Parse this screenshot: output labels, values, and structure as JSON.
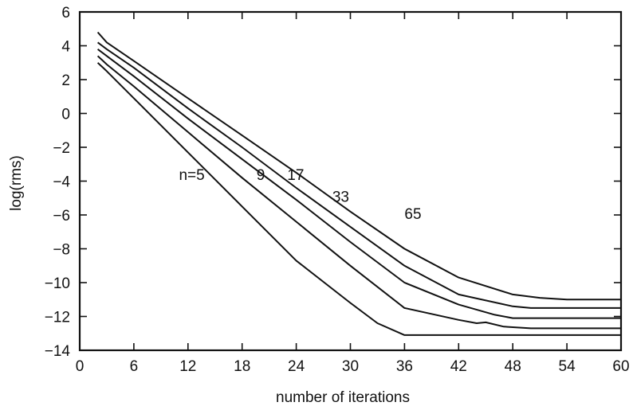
{
  "chart_data": {
    "type": "line",
    "title": "",
    "xlabel": "number of iterations",
    "ylabel": "log(rms)",
    "xlim": [
      0,
      60
    ],
    "ylim": [
      -14,
      6
    ],
    "xticks": [
      0,
      6,
      12,
      18,
      24,
      30,
      36,
      42,
      48,
      54,
      60
    ],
    "yticks": [
      -14,
      -12,
      -10,
      -8,
      -6,
      -4,
      -2,
      0,
      2,
      4,
      6
    ],
    "grid": false,
    "legend": "none",
    "colors": {
      "line": "#111111",
      "axis": "#111111"
    },
    "series": [
      {
        "name": "n=5",
        "label_at": [
          11,
          -3.6
        ],
        "points": [
          [
            2,
            3.0
          ],
          [
            3,
            2.5
          ],
          [
            6,
            0.9
          ],
          [
            12,
            -2.3
          ],
          [
            18,
            -5.5
          ],
          [
            24,
            -8.7
          ],
          [
            30,
            -11.2
          ],
          [
            33,
            -12.4
          ],
          [
            36,
            -13.1
          ],
          [
            42,
            -13.1
          ],
          [
            48,
            -13.1
          ],
          [
            54,
            -13.1
          ],
          [
            60,
            -13.1
          ]
        ]
      },
      {
        "name": "9",
        "label_at": [
          19.6,
          -3.6
        ],
        "points": [
          [
            2,
            3.4
          ],
          [
            3,
            2.9
          ],
          [
            6,
            1.6
          ],
          [
            12,
            -1.1
          ],
          [
            18,
            -3.8
          ],
          [
            24,
            -6.4
          ],
          [
            30,
            -9.0
          ],
          [
            36,
            -11.5
          ],
          [
            42,
            -12.2
          ],
          [
            44,
            -12.4
          ],
          [
            45,
            -12.35
          ],
          [
            47,
            -12.6
          ],
          [
            50,
            -12.7
          ],
          [
            54,
            -12.7
          ],
          [
            60,
            -12.7
          ]
        ]
      },
      {
        "name": "17",
        "label_at": [
          23,
          -3.6
        ],
        "points": [
          [
            2,
            3.8
          ],
          [
            3,
            3.4
          ],
          [
            6,
            2.2
          ],
          [
            12,
            -0.3
          ],
          [
            18,
            -2.7
          ],
          [
            24,
            -5.1
          ],
          [
            30,
            -7.6
          ],
          [
            36,
            -10.0
          ],
          [
            42,
            -11.3
          ],
          [
            46,
            -11.9
          ],
          [
            48,
            -12.1
          ],
          [
            50,
            -12.1
          ],
          [
            54,
            -12.1
          ],
          [
            60,
            -12.1
          ]
        ]
      },
      {
        "name": "33",
        "label_at": [
          28,
          -4.9
        ],
        "points": [
          [
            2,
            4.2
          ],
          [
            3,
            3.8
          ],
          [
            6,
            2.7
          ],
          [
            12,
            0.3
          ],
          [
            18,
            -2.0
          ],
          [
            24,
            -4.4
          ],
          [
            30,
            -6.7
          ],
          [
            36,
            -9.0
          ],
          [
            42,
            -10.7
          ],
          [
            48,
            -11.4
          ],
          [
            50,
            -11.5
          ],
          [
            54,
            -11.5
          ],
          [
            60,
            -11.5
          ]
        ]
      },
      {
        "name": "65",
        "label_at": [
          36,
          -5.9
        ],
        "points": [
          [
            2,
            4.8
          ],
          [
            3,
            4.2
          ],
          [
            6,
            3.1
          ],
          [
            12,
            0.9
          ],
          [
            18,
            -1.3
          ],
          [
            24,
            -3.5
          ],
          [
            30,
            -5.8
          ],
          [
            36,
            -8.0
          ],
          [
            42,
            -9.7
          ],
          [
            48,
            -10.7
          ],
          [
            51,
            -10.9
          ],
          [
            54,
            -11.0
          ],
          [
            60,
            -11.0
          ]
        ]
      }
    ]
  }
}
